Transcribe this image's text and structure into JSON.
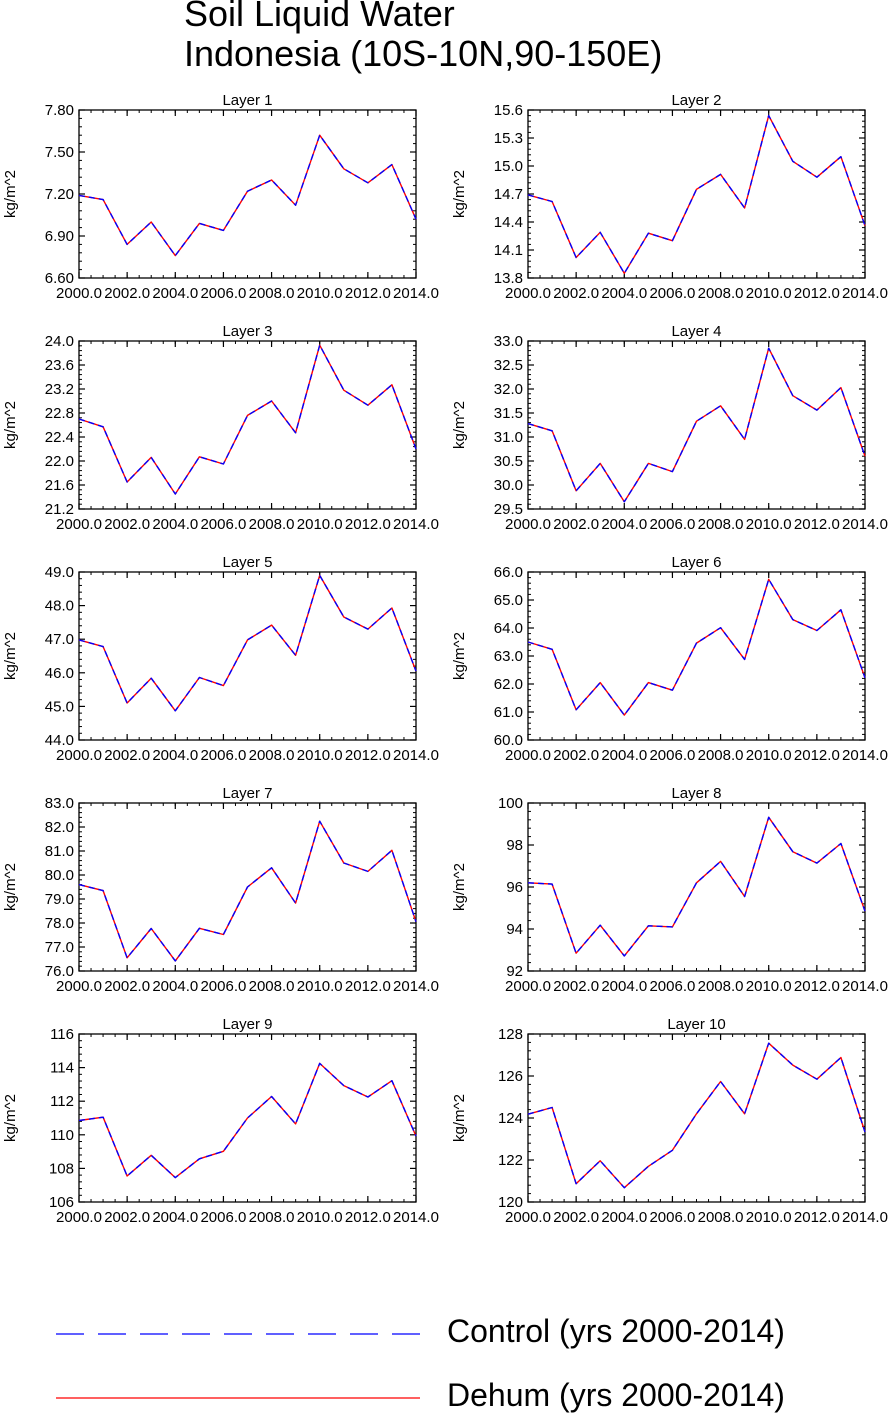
{
  "title": "Soil Liquid Water",
  "subtitle": "Indonesia (10S-10N,90-150E)",
  "legend": [
    {
      "label": "Control (yrs 2000-2014)",
      "color": "#0000ff",
      "style": "dashed"
    },
    {
      "label": "Dehum (yrs 2000-2014)",
      "color": "#ff0000",
      "style": "solid"
    }
  ],
  "chart_data": [
    {
      "type": "line",
      "title": "Layer 1",
      "ylabel": "kg/m^2",
      "xlim": [
        2000,
        2014
      ],
      "ylim": [
        6.6,
        7.8
      ],
      "yticks": [
        "6.60",
        "6.90",
        "7.20",
        "7.50",
        "7.80"
      ],
      "xticks": [
        "2000.0",
        "2002.0",
        "2004.0",
        "2006.0",
        "2008.0",
        "2010.0",
        "2012.0",
        "2014.0"
      ],
      "x": [
        2000,
        2001,
        2002,
        2003,
        2004,
        2005,
        2006,
        2007,
        2008,
        2009,
        2010,
        2011,
        2012,
        2013,
        2014
      ],
      "series": [
        {
          "name": "Control (yrs 2000-2014)",
          "values": [
            7.19,
            7.16,
            6.84,
            7.0,
            6.76,
            6.99,
            6.94,
            7.22,
            7.3,
            7.12,
            7.62,
            7.38,
            7.28,
            7.41,
            7.02
          ]
        },
        {
          "name": "Dehum (yrs 2000-2014)",
          "values": [
            7.19,
            7.16,
            6.84,
            7.0,
            6.76,
            6.99,
            6.94,
            7.22,
            7.3,
            7.12,
            7.62,
            7.38,
            7.28,
            7.41,
            7.02
          ]
        }
      ]
    },
    {
      "type": "line",
      "title": "Layer 2",
      "ylabel": "kg/m^2",
      "xlim": [
        2000,
        2014
      ],
      "ylim": [
        13.8,
        15.6
      ],
      "yticks": [
        "13.8",
        "14.1",
        "14.4",
        "14.7",
        "15.0",
        "15.3",
        "15.6"
      ],
      "xticks": [
        "2000.0",
        "2002.0",
        "2004.0",
        "2006.0",
        "2008.0",
        "2010.0",
        "2012.0",
        "2014.0"
      ],
      "x": [
        2000,
        2001,
        2002,
        2003,
        2004,
        2005,
        2006,
        2007,
        2008,
        2009,
        2010,
        2011,
        2012,
        2013,
        2014
      ],
      "series": [
        {
          "name": "Control (yrs 2000-2014)",
          "values": [
            14.69,
            14.62,
            14.02,
            14.29,
            13.85,
            14.28,
            14.2,
            14.75,
            14.91,
            14.55,
            15.54,
            15.05,
            14.88,
            15.1,
            14.36
          ]
        },
        {
          "name": "Dehum (yrs 2000-2014)",
          "values": [
            14.69,
            14.62,
            14.02,
            14.29,
            13.85,
            14.28,
            14.2,
            14.75,
            14.91,
            14.55,
            15.54,
            15.05,
            14.88,
            15.1,
            14.36
          ]
        }
      ]
    },
    {
      "type": "line",
      "title": "Layer 3",
      "ylabel": "kg/m^2",
      "xlim": [
        2000,
        2014
      ],
      "ylim": [
        21.2,
        24.0
      ],
      "yticks": [
        "21.2",
        "21.6",
        "22.0",
        "22.4",
        "22.8",
        "23.2",
        "23.6",
        "24.0"
      ],
      "xticks": [
        "2000.0",
        "2002.0",
        "2004.0",
        "2006.0",
        "2008.0",
        "2010.0",
        "2012.0",
        "2014.0"
      ],
      "x": [
        2000,
        2001,
        2002,
        2003,
        2004,
        2005,
        2006,
        2007,
        2008,
        2009,
        2010,
        2011,
        2012,
        2013,
        2014
      ],
      "series": [
        {
          "name": "Control (yrs 2000-2014)",
          "values": [
            22.7,
            22.57,
            21.65,
            22.06,
            21.45,
            22.07,
            21.95,
            22.76,
            23.0,
            22.47,
            23.93,
            23.18,
            22.93,
            23.27,
            22.2
          ]
        },
        {
          "name": "Dehum (yrs 2000-2014)",
          "values": [
            22.7,
            22.57,
            21.65,
            22.06,
            21.45,
            22.07,
            21.95,
            22.76,
            23.0,
            22.47,
            23.93,
            23.18,
            22.93,
            23.27,
            22.2
          ]
        }
      ]
    },
    {
      "type": "line",
      "title": "Layer 4",
      "ylabel": "kg/m^2",
      "xlim": [
        2000,
        2014
      ],
      "ylim": [
        29.5,
        33.0
      ],
      "yticks": [
        "29.5",
        "30.0",
        "30.5",
        "31.0",
        "31.5",
        "32.0",
        "32.5",
        "33.0"
      ],
      "xticks": [
        "2000.0",
        "2002.0",
        "2004.0",
        "2006.0",
        "2008.0",
        "2010.0",
        "2012.0",
        "2014.0"
      ],
      "x": [
        2000,
        2001,
        2002,
        2003,
        2004,
        2005,
        2006,
        2007,
        2008,
        2009,
        2010,
        2011,
        2012,
        2013,
        2014
      ],
      "series": [
        {
          "name": "Control (yrs 2000-2014)",
          "values": [
            31.28,
            31.13,
            29.88,
            30.45,
            29.65,
            30.45,
            30.28,
            31.33,
            31.65,
            30.95,
            32.85,
            31.86,
            31.56,
            32.03,
            30.6
          ]
        },
        {
          "name": "Dehum (yrs 2000-2014)",
          "values": [
            31.28,
            31.13,
            29.88,
            30.45,
            29.65,
            30.45,
            30.28,
            31.33,
            31.65,
            30.95,
            32.85,
            31.86,
            31.56,
            32.03,
            30.6
          ]
        }
      ]
    },
    {
      "type": "line",
      "title": "Layer 5",
      "ylabel": "kg/m^2",
      "xlim": [
        2000,
        2014
      ],
      "ylim": [
        44.0,
        49.0
      ],
      "yticks": [
        "44.0",
        "45.0",
        "46.0",
        "47.0",
        "48.0",
        "49.0"
      ],
      "xticks": [
        "2000.0",
        "2002.0",
        "2004.0",
        "2006.0",
        "2008.0",
        "2010.0",
        "2012.0",
        "2014.0"
      ],
      "x": [
        2000,
        2001,
        2002,
        2003,
        2004,
        2005,
        2006,
        2007,
        2008,
        2009,
        2010,
        2011,
        2012,
        2013,
        2014
      ],
      "series": [
        {
          "name": "Control (yrs 2000-2014)",
          "values": [
            46.98,
            46.78,
            45.1,
            45.84,
            44.87,
            45.86,
            45.62,
            46.98,
            47.42,
            46.52,
            48.9,
            47.66,
            47.3,
            47.93,
            46.05
          ]
        },
        {
          "name": "Dehum (yrs 2000-2014)",
          "values": [
            46.98,
            46.78,
            45.1,
            45.84,
            44.87,
            45.86,
            45.62,
            46.98,
            47.42,
            46.52,
            48.9,
            47.66,
            47.3,
            47.93,
            46.05
          ]
        }
      ]
    },
    {
      "type": "line",
      "title": "Layer 6",
      "ylabel": "kg/m^2",
      "xlim": [
        2000,
        2014
      ],
      "ylim": [
        60.0,
        66.0
      ],
      "yticks": [
        "60.0",
        "61.0",
        "62.0",
        "63.0",
        "64.0",
        "65.0",
        "66.0"
      ],
      "xticks": [
        "2000.0",
        "2002.0",
        "2004.0",
        "2006.0",
        "2008.0",
        "2010.0",
        "2012.0",
        "2014.0"
      ],
      "x": [
        2000,
        2001,
        2002,
        2003,
        2004,
        2005,
        2006,
        2007,
        2008,
        2009,
        2010,
        2011,
        2012,
        2013,
        2014
      ],
      "series": [
        {
          "name": "Control (yrs 2000-2014)",
          "values": [
            63.5,
            63.24,
            61.08,
            62.05,
            60.89,
            62.05,
            61.78,
            63.46,
            64.01,
            62.88,
            65.74,
            64.3,
            63.91,
            64.65,
            62.22
          ]
        },
        {
          "name": "Dehum (yrs 2000-2014)",
          "values": [
            63.5,
            63.24,
            61.08,
            62.05,
            60.89,
            62.05,
            61.78,
            63.46,
            64.01,
            62.88,
            65.74,
            64.3,
            63.91,
            64.65,
            62.22
          ]
        }
      ]
    },
    {
      "type": "line",
      "title": "Layer 7",
      "ylabel": "kg/m^2",
      "xlim": [
        2000,
        2014
      ],
      "ylim": [
        76.0,
        83.0
      ],
      "yticks": [
        "76.0",
        "77.0",
        "78.0",
        "79.0",
        "80.0",
        "81.0",
        "82.0",
        "83.0"
      ],
      "xticks": [
        "2000.0",
        "2002.0",
        "2004.0",
        "2006.0",
        "2008.0",
        "2010.0",
        "2012.0",
        "2014.0"
      ],
      "x": [
        2000,
        2001,
        2002,
        2003,
        2004,
        2005,
        2006,
        2007,
        2008,
        2009,
        2010,
        2011,
        2012,
        2013,
        2014
      ],
      "series": [
        {
          "name": "Control (yrs 2000-2014)",
          "values": [
            79.6,
            79.35,
            76.55,
            77.77,
            76.42,
            77.78,
            77.52,
            79.5,
            80.3,
            78.83,
            82.24,
            80.5,
            80.15,
            81.03,
            78.05
          ]
        },
        {
          "name": "Dehum (yrs 2000-2014)",
          "values": [
            79.6,
            79.35,
            76.55,
            77.77,
            76.42,
            77.78,
            77.52,
            79.5,
            80.3,
            78.83,
            82.24,
            80.5,
            80.15,
            81.03,
            78.05
          ]
        }
      ]
    },
    {
      "type": "line",
      "title": "Layer 8",
      "ylabel": "kg/m^2",
      "xlim": [
        2000,
        2014
      ],
      "ylim": [
        92,
        100
      ],
      "yticks": [
        "92",
        "94",
        "96",
        "98",
        "100"
      ],
      "xticks": [
        "2000.0",
        "2002.0",
        "2004.0",
        "2006.0",
        "2008.0",
        "2010.0",
        "2012.0",
        "2014.0"
      ],
      "x": [
        2000,
        2001,
        2002,
        2003,
        2004,
        2005,
        2006,
        2007,
        2008,
        2009,
        2010,
        2011,
        2012,
        2013,
        2014
      ],
      "series": [
        {
          "name": "Control (yrs 2000-2014)",
          "values": [
            96.2,
            96.14,
            92.85,
            94.18,
            92.72,
            94.15,
            94.1,
            96.2,
            97.22,
            95.55,
            99.32,
            97.68,
            97.14,
            98.07,
            94.85
          ]
        },
        {
          "name": "Dehum (yrs 2000-2014)",
          "values": [
            96.2,
            96.14,
            92.85,
            94.18,
            92.72,
            94.15,
            94.1,
            96.2,
            97.22,
            95.55,
            99.32,
            97.68,
            97.14,
            98.07,
            94.85
          ]
        }
      ]
    },
    {
      "type": "line",
      "title": "Layer 9",
      "ylabel": "kg/m^2",
      "xlim": [
        2000,
        2014
      ],
      "ylim": [
        106,
        116
      ],
      "yticks": [
        "106",
        "108",
        "110",
        "112",
        "114",
        "116"
      ],
      "xticks": [
        "2000.0",
        "2002.0",
        "2004.0",
        "2006.0",
        "2008.0",
        "2010.0",
        "2012.0",
        "2014.0"
      ],
      "x": [
        2000,
        2001,
        2002,
        2003,
        2004,
        2005,
        2006,
        2007,
        2008,
        2009,
        2010,
        2011,
        2012,
        2013,
        2014
      ],
      "series": [
        {
          "name": "Control (yrs 2000-2014)",
          "values": [
            110.85,
            111.05,
            107.55,
            108.78,
            107.45,
            108.57,
            109.02,
            111.0,
            112.28,
            110.65,
            114.25,
            112.93,
            112.25,
            113.22,
            109.92
          ]
        },
        {
          "name": "Dehum (yrs 2000-2014)",
          "values": [
            110.85,
            111.05,
            107.55,
            108.78,
            107.45,
            108.57,
            109.02,
            111.0,
            112.28,
            110.65,
            114.25,
            112.93,
            112.25,
            113.22,
            109.92
          ]
        }
      ]
    },
    {
      "type": "line",
      "title": "Layer 10",
      "ylabel": "kg/m^2",
      "xlim": [
        2000,
        2014
      ],
      "ylim": [
        120,
        128
      ],
      "yticks": [
        "120",
        "122",
        "124",
        "126",
        "128"
      ],
      "xticks": [
        "2000.0",
        "2002.0",
        "2004.0",
        "2006.0",
        "2008.0",
        "2010.0",
        "2012.0",
        "2014.0"
      ],
      "x": [
        2000,
        2001,
        2002,
        2003,
        2004,
        2005,
        2006,
        2007,
        2008,
        2009,
        2010,
        2011,
        2012,
        2013,
        2014
      ],
      "series": [
        {
          "name": "Control (yrs 2000-2014)",
          "values": [
            124.18,
            124.5,
            120.87,
            121.96,
            120.68,
            121.7,
            122.46,
            124.2,
            125.74,
            124.2,
            127.56,
            126.52,
            125.85,
            126.88,
            123.33
          ]
        },
        {
          "name": "Dehum (yrs 2000-2014)",
          "values": [
            124.18,
            124.5,
            120.87,
            121.96,
            120.68,
            121.7,
            122.46,
            124.2,
            125.74,
            124.2,
            127.56,
            126.52,
            125.85,
            126.88,
            123.33
          ]
        }
      ]
    }
  ]
}
